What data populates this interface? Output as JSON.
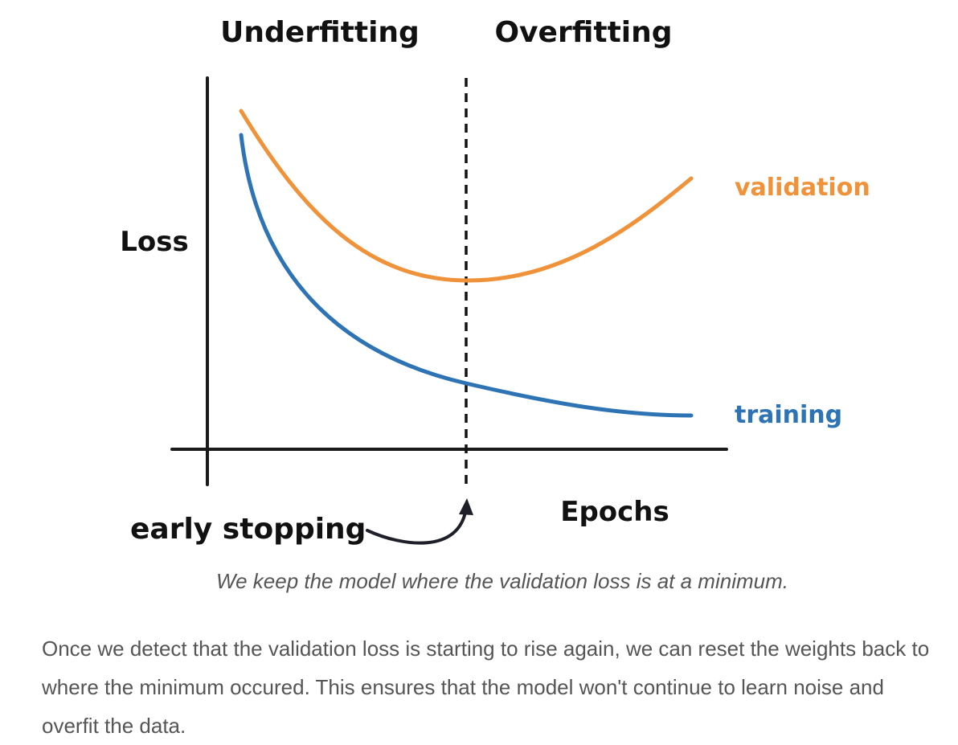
{
  "diagram": {
    "header_left": "Underfitting",
    "header_right": "Overfitting",
    "y_label": "Loss",
    "x_label": "Epochs",
    "annotation": "early stopping",
    "colors": {
      "validation": "#F0923A",
      "training": "#2E74B5",
      "axes": "#1a1a1a"
    }
  },
  "chart_data": {
    "type": "line",
    "title": "",
    "xlabel": "Epochs",
    "ylabel": "Loss",
    "series": [
      {
        "name": "validation",
        "color": "#F0923A"
      },
      {
        "name": "training",
        "color": "#2E74B5"
      }
    ],
    "marker": {
      "label": "early stopping",
      "at": "validation minimum"
    }
  },
  "caption": "We keep the model where the validation loss is at a minimum.",
  "paragraph": "Once we detect that the validation loss is starting to rise again, we can reset the weights back to where the minimum occured. This ensures that the model won't continue to learn noise and overfit the data."
}
